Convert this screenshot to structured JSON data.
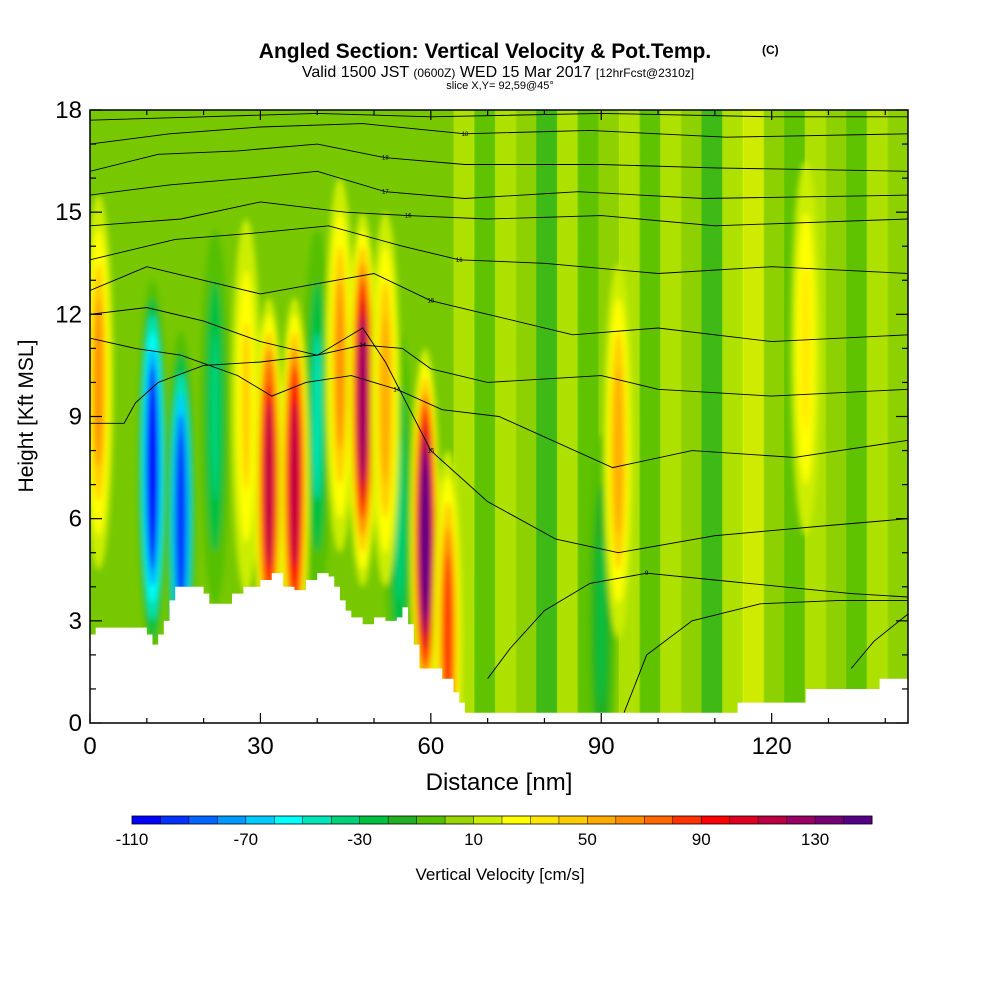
{
  "chart_data": {
    "type": "heatmap",
    "title": "Angled Section: Vertical Velocity & Pot.Temp.",
    "title_mark": "(C)",
    "subtitle_parts": {
      "valid": "Valid 1500 JST",
      "utc": "(0600Z)",
      "date": "WED 15 Mar 2017",
      "forecast": "[12hrFcst@2310z]"
    },
    "slice_label": "slice X,Y= 92,59@45°",
    "xlabel": "Distance [nm]",
    "ylabel": "Height [Kft MSL]",
    "xlim": [
      0,
      144
    ],
    "ylim": [
      0,
      18
    ],
    "x_ticks": [
      0,
      30,
      60,
      90,
      120
    ],
    "y_ticks": [
      0,
      3,
      6,
      9,
      12,
      15,
      18
    ],
    "grid": false,
    "colorbar": {
      "label": "Vertical Velocity [cm/s]",
      "tick_labels": [
        -110,
        -70,
        -30,
        10,
        50,
        90,
        130
      ],
      "bins": [
        -110,
        -100,
        -90,
        -80,
        -70,
        -60,
        -50,
        -40,
        -30,
        -20,
        -10,
        0,
        10,
        20,
        30,
        40,
        50,
        60,
        70,
        80,
        90,
        100,
        110,
        120,
        130,
        140,
        150
      ],
      "colors": [
        "#0000ff",
        "#0033ff",
        "#0066ff",
        "#0099ff",
        "#00ccff",
        "#00ffff",
        "#00e6b8",
        "#00d27a",
        "#00c040",
        "#22b022",
        "#55c000",
        "#99d500",
        "#ccee00",
        "#ffff00",
        "#ffe600",
        "#ffcc00",
        "#ffaa00",
        "#ff8c00",
        "#ff6600",
        "#ff3300",
        "#ff0000",
        "#dd0022",
        "#bb0044",
        "#990066",
        "#770077",
        "#550088"
      ]
    },
    "terrain": [
      [
        0,
        2.6
      ],
      [
        1,
        2.8
      ],
      [
        8,
        2.8
      ],
      [
        10,
        2.6
      ],
      [
        11,
        2.3
      ],
      [
        12,
        2.6
      ],
      [
        13,
        3.0
      ],
      [
        14,
        3.6
      ],
      [
        15,
        4.0
      ],
      [
        19,
        4.0
      ],
      [
        20,
        3.8
      ],
      [
        21,
        3.5
      ],
      [
        24,
        3.5
      ],
      [
        25,
        3.8
      ],
      [
        27,
        4.0
      ],
      [
        30,
        4.2
      ],
      [
        32,
        4.4
      ],
      [
        34,
        4.0
      ],
      [
        36,
        3.9
      ],
      [
        38,
        4.2
      ],
      [
        40,
        4.4
      ],
      [
        42,
        4.3
      ],
      [
        43,
        4.0
      ],
      [
        44,
        3.6
      ],
      [
        45,
        3.3
      ],
      [
        46,
        3.1
      ],
      [
        48,
        2.9
      ],
      [
        50,
        3.1
      ],
      [
        52,
        3.0
      ],
      [
        54,
        3.1
      ],
      [
        55,
        3.4
      ],
      [
        56,
        2.9
      ],
      [
        57,
        2.3
      ],
      [
        58,
        1.6
      ],
      [
        61,
        1.6
      ],
      [
        62,
        1.3
      ],
      [
        64,
        0.9
      ],
      [
        65,
        0.6
      ],
      [
        66,
        0.3
      ],
      [
        70,
        0.3
      ],
      [
        113,
        0.3
      ],
      [
        114,
        0.6
      ],
      [
        125,
        0.6
      ],
      [
        126,
        1.0
      ],
      [
        138,
        1.0
      ],
      [
        139,
        1.3
      ],
      [
        144,
        1.3
      ]
    ],
    "updrafts": [
      {
        "x": 1.5,
        "z": 10.0,
        "w": 60
      },
      {
        "x": 27.5,
        "z": 9.3,
        "w": 45
      },
      {
        "x": 31.5,
        "z": 7.0,
        "w": 110
      },
      {
        "x": 36.0,
        "z": 7.0,
        "w": 115
      },
      {
        "x": 44.0,
        "z": 10.5,
        "w": 60
      },
      {
        "x": 48.0,
        "z": 9.5,
        "w": 120
      },
      {
        "x": 52.0,
        "z": 9.5,
        "w": 55
      },
      {
        "x": 59.0,
        "z": 5.5,
        "w": 145
      },
      {
        "x": 63.0,
        "z": 2.5,
        "w": 80
      },
      {
        "x": 93.0,
        "z": 8.0,
        "w": 55
      },
      {
        "x": 126.0,
        "z": 11.0,
        "w": 30
      }
    ],
    "downdrafts": [
      {
        "x": 11.0,
        "z": 7.5,
        "w": -110
      },
      {
        "x": 16.0,
        "z": 6.0,
        "w": -100
      },
      {
        "x": 22.0,
        "z": 9.0,
        "w": -40
      },
      {
        "x": 40.0,
        "z": 9.0,
        "w": -45
      },
      {
        "x": 54.5,
        "z": 6.0,
        "w": -40
      },
      {
        "x": 90.0,
        "z": 3.0,
        "w": -30
      }
    ],
    "theta_contours": [
      {
        "label": "14",
        "points": [
          [
            0,
            8.8
          ],
          [
            6,
            8.8
          ],
          [
            8,
            9.4
          ],
          [
            12,
            10.0
          ],
          [
            20,
            10.5
          ],
          [
            30,
            10.6
          ],
          [
            40,
            10.8
          ],
          [
            48,
            11.1
          ],
          [
            55,
            11.0
          ],
          [
            60,
            10.4
          ],
          [
            70,
            10.0
          ],
          [
            90,
            10.2
          ],
          [
            100,
            9.8
          ],
          [
            120,
            9.6
          ],
          [
            144,
            9.8
          ]
        ]
      },
      {
        "label": "14",
        "points": [
          [
            0,
            11.3
          ],
          [
            8,
            11.0
          ],
          [
            16,
            10.8
          ],
          [
            26,
            10.2
          ],
          [
            32,
            9.6
          ],
          [
            38,
            10.0
          ],
          [
            46,
            10.2
          ],
          [
            54,
            9.8
          ],
          [
            62,
            9.2
          ],
          [
            72,
            9.0
          ],
          [
            92,
            7.5
          ],
          [
            106,
            8.0
          ],
          [
            124,
            7.8
          ],
          [
            144,
            8.3
          ]
        ]
      },
      {
        "label": "15",
        "points": [
          [
            0,
            12.0
          ],
          [
            10,
            12.2
          ],
          [
            20,
            11.8
          ],
          [
            30,
            11.2
          ],
          [
            40,
            10.8
          ],
          [
            48,
            11.6
          ],
          [
            52,
            10.6
          ],
          [
            60,
            8.0
          ],
          [
            70,
            6.5
          ],
          [
            82,
            5.4
          ],
          [
            93,
            5.0
          ],
          [
            110,
            5.5
          ],
          [
            130,
            5.8
          ],
          [
            144,
            6.0
          ]
        ]
      },
      {
        "label": "9",
        "points": [
          [
            70,
            1.3
          ],
          [
            74,
            2.2
          ],
          [
            80,
            3.3
          ],
          [
            88,
            4.1
          ],
          [
            98,
            4.4
          ],
          [
            110,
            4.2
          ],
          [
            122,
            4.0
          ],
          [
            134,
            3.8
          ],
          [
            144,
            3.7
          ]
        ]
      },
      {
        "label": "",
        "points": [
          [
            94,
            0.3
          ],
          [
            98,
            2.0
          ],
          [
            106,
            3.0
          ],
          [
            118,
            3.5
          ],
          [
            132,
            3.6
          ],
          [
            144,
            3.6
          ]
        ]
      },
      {
        "label": "",
        "points": [
          [
            134,
            1.6
          ],
          [
            138,
            2.4
          ],
          [
            144,
            3.2
          ]
        ]
      },
      {
        "label": "15",
        "points": [
          [
            0,
            12.7
          ],
          [
            10,
            13.4
          ],
          [
            20,
            13.0
          ],
          [
            30,
            12.6
          ],
          [
            40,
            12.9
          ],
          [
            50,
            13.2
          ],
          [
            60,
            12.4
          ],
          [
            70,
            12.0
          ],
          [
            85,
            11.4
          ],
          [
            100,
            11.6
          ],
          [
            120,
            11.2
          ],
          [
            144,
            11.4
          ]
        ]
      },
      {
        "label": "16",
        "points": [
          [
            0,
            13.6
          ],
          [
            15,
            14.2
          ],
          [
            30,
            14.4
          ],
          [
            42,
            14.6
          ],
          [
            55,
            14.0
          ],
          [
            65,
            13.6
          ],
          [
            80,
            13.5
          ],
          [
            100,
            13.2
          ],
          [
            120,
            13.4
          ],
          [
            144,
            13.2
          ]
        ]
      },
      {
        "label": "16",
        "points": [
          [
            0,
            14.6
          ],
          [
            16,
            14.8
          ],
          [
            30,
            15.3
          ],
          [
            45,
            15.0
          ],
          [
            56,
            14.9
          ],
          [
            70,
            14.8
          ],
          [
            90,
            14.9
          ],
          [
            110,
            14.6
          ],
          [
            144,
            14.8
          ]
        ]
      },
      {
        "label": "17",
        "points": [
          [
            0,
            15.5
          ],
          [
            14,
            15.8
          ],
          [
            28,
            16.0
          ],
          [
            40,
            16.2
          ],
          [
            52,
            15.6
          ],
          [
            66,
            15.4
          ],
          [
            86,
            15.6
          ],
          [
            108,
            15.4
          ],
          [
            144,
            15.5
          ]
        ]
      },
      {
        "label": "18",
        "points": [
          [
            0,
            16.2
          ],
          [
            12,
            16.7
          ],
          [
            26,
            16.8
          ],
          [
            40,
            17.0
          ],
          [
            52,
            16.6
          ],
          [
            66,
            16.4
          ],
          [
            90,
            16.4
          ],
          [
            110,
            16.3
          ],
          [
            144,
            16.2
          ]
        ]
      },
      {
        "label": "18",
        "points": [
          [
            0,
            17.0
          ],
          [
            14,
            17.3
          ],
          [
            30,
            17.5
          ],
          [
            48,
            17.6
          ],
          [
            66,
            17.3
          ],
          [
            88,
            17.4
          ],
          [
            112,
            17.2
          ],
          [
            144,
            17.3
          ]
        ]
      },
      {
        "label": "",
        "points": [
          [
            0,
            17.7
          ],
          [
            20,
            17.8
          ],
          [
            40,
            17.9
          ],
          [
            60,
            17.8
          ],
          [
            90,
            17.9
          ],
          [
            120,
            17.8
          ],
          [
            144,
            17.8
          ]
        ]
      }
    ]
  }
}
